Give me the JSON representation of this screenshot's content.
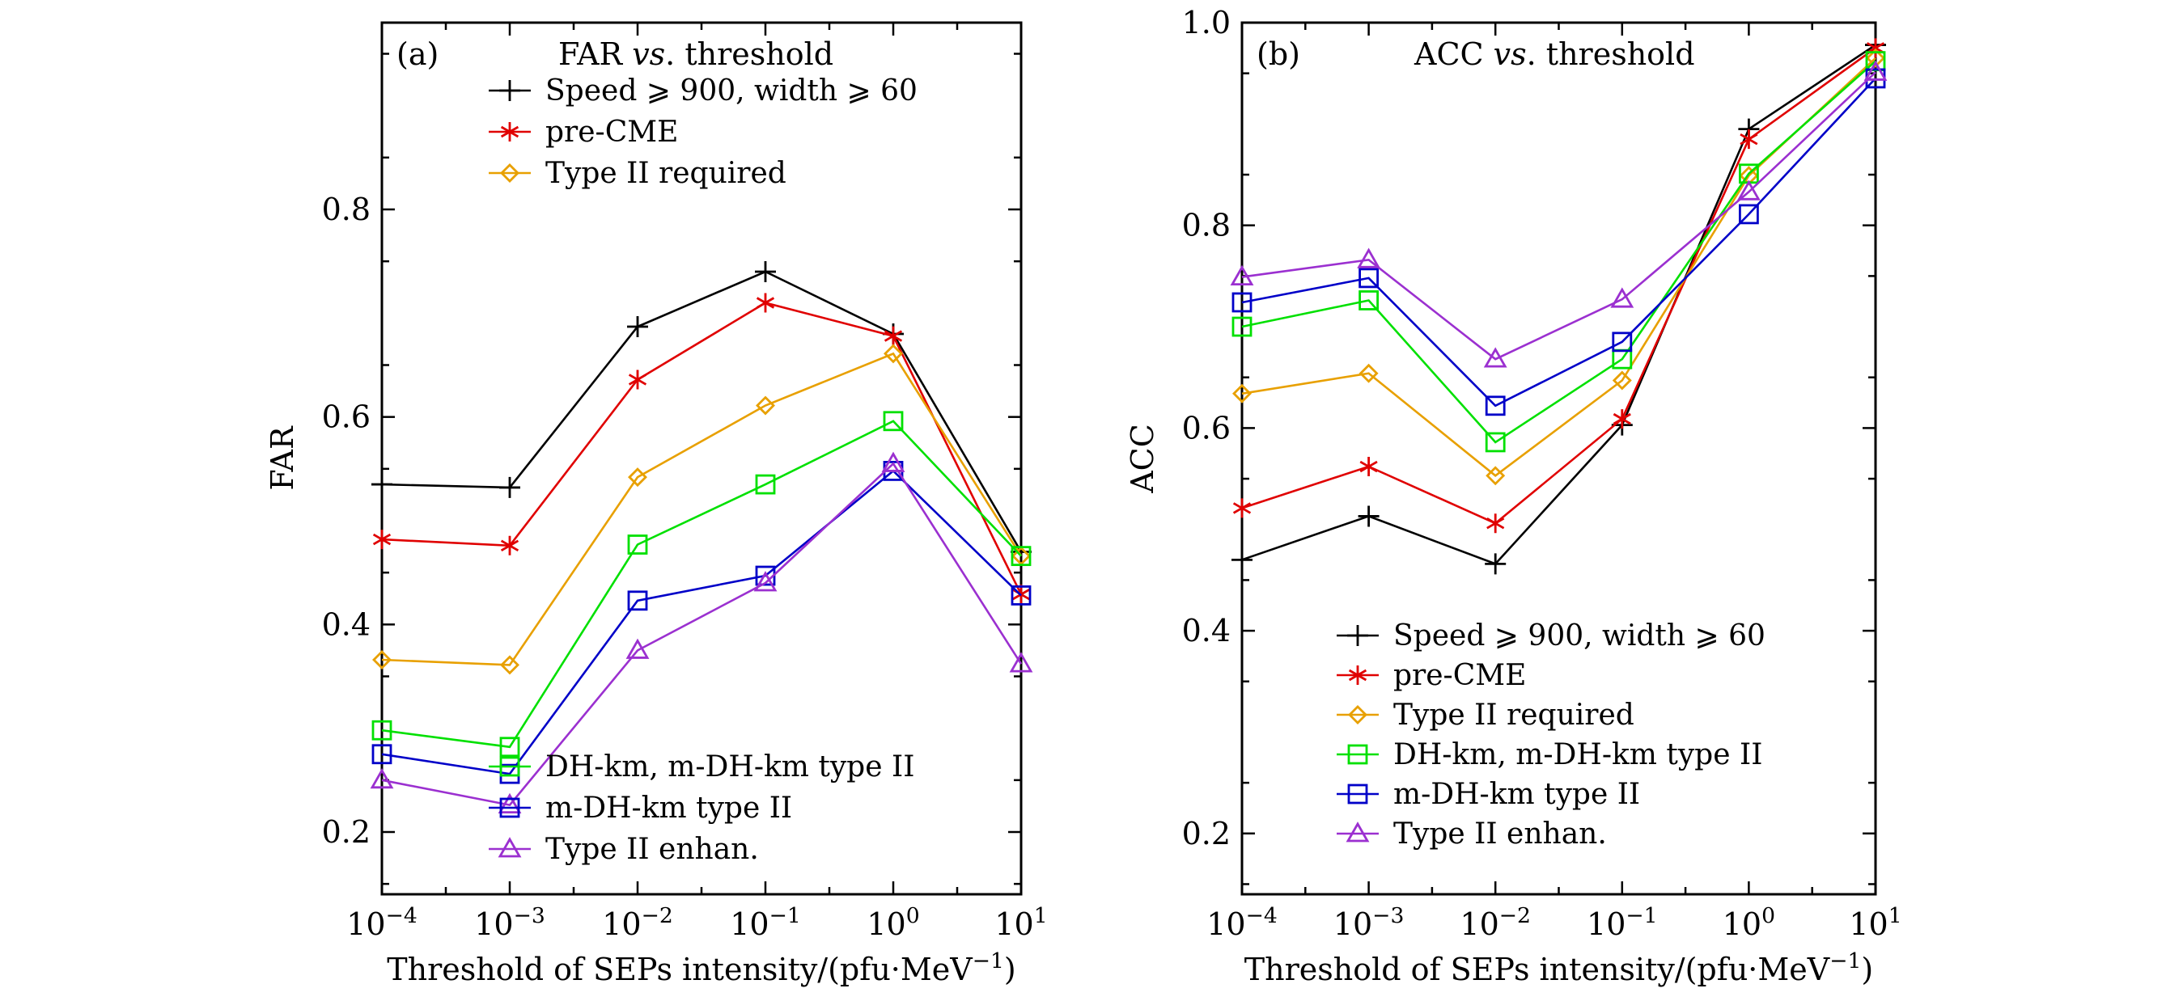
{
  "chart_data": [
    {
      "type": "line",
      "panel_label": "(a)",
      "title_parts": [
        "FAR ",
        "vs",
        ". threshold"
      ],
      "xlabel_parts": [
        "Threshold of SEPs intensity/(pfu·MeV",
        "−1",
        ")"
      ],
      "ylabel": "FAR",
      "x": [
        0.0001,
        0.001,
        0.01,
        0.1,
        1,
        10
      ],
      "x_scale": "log",
      "xlim": [
        0.0001,
        10
      ],
      "xticks": [
        {
          "base": "10",
          "exp": "−4"
        },
        {
          "base": "10",
          "exp": "−3"
        },
        {
          "base": "10",
          "exp": "−2"
        },
        {
          "base": "10",
          "exp": "−1"
        },
        {
          "base": "10",
          "exp": "0"
        },
        {
          "base": "10",
          "exp": "1"
        }
      ],
      "ylim": [
        0.14,
        0.98
      ],
      "yticks": [
        "0.2",
        "0.4",
        "0.6",
        "0.8"
      ],
      "grid": false,
      "legend_top": [
        "Speed ⩾ 900, width ⩾ 60",
        "pre-CME",
        "Type II required"
      ],
      "legend_bottom": [
        "DH-km, m-DH-km type II",
        "m-DH-km type II",
        "Type II enhan."
      ],
      "series": [
        {
          "name": "Speed ⩾ 900, width ⩾ 60",
          "color": "#000000",
          "marker": "plus",
          "values": [
            0.535,
            0.532,
            0.687,
            0.74,
            0.68,
            0.47
          ]
        },
        {
          "name": "pre-CME",
          "color": "#e00000",
          "marker": "asterisk",
          "values": [
            0.482,
            0.476,
            0.636,
            0.71,
            0.678,
            0.429
          ]
        },
        {
          "name": "Type II required",
          "color": "#e8a000",
          "marker": "diamond",
          "values": [
            0.366,
            0.361,
            0.542,
            0.611,
            0.661,
            0.466
          ]
        },
        {
          "name": "DH-km, m-DH-km type II",
          "color": "#00e000",
          "marker": "square",
          "values": [
            0.298,
            0.282,
            0.477,
            0.535,
            0.596,
            0.466
          ]
        },
        {
          "name": "m-DH-km type II",
          "color": "#0000c8",
          "marker": "square",
          "values": [
            0.275,
            0.256,
            0.423,
            0.447,
            0.548,
            0.428
          ]
        },
        {
          "name": "Type II enhan.",
          "color": "#9b30d0",
          "marker": "triangle",
          "values": [
            0.25,
            0.226,
            0.375,
            0.44,
            0.555,
            0.362
          ]
        }
      ]
    },
    {
      "type": "line",
      "panel_label": "(b)",
      "title_parts": [
        "ACC ",
        "vs",
        ". threshold"
      ],
      "xlabel_parts": [
        "Threshold of SEPs intensity/(pfu·MeV",
        "−1",
        ")"
      ],
      "ylabel": "ACC",
      "x": [
        0.0001,
        0.001,
        0.01,
        0.1,
        1,
        10
      ],
      "x_scale": "log",
      "xlim": [
        0.0001,
        10
      ],
      "xticks": [
        {
          "base": "10",
          "exp": "−4"
        },
        {
          "base": "10",
          "exp": "−3"
        },
        {
          "base": "10",
          "exp": "−2"
        },
        {
          "base": "10",
          "exp": "−1"
        },
        {
          "base": "10",
          "exp": "0"
        },
        {
          "base": "10",
          "exp": "1"
        }
      ],
      "ylim": [
        0.14,
        1.0
      ],
      "yticks": [
        "0.2",
        "0.4",
        "0.6",
        "0.8",
        "1.0"
      ],
      "grid": false,
      "legend_top": [],
      "legend_bottom": [
        "Speed ⩾ 900, width ⩾ 60",
        "pre-CME",
        "Type II required",
        "DH-km, m-DH-km type II",
        "m-DH-km type II",
        "Type II enhan."
      ],
      "series": [
        {
          "name": "Speed ⩾ 900, width ⩾ 60",
          "color": "#000000",
          "marker": "plus",
          "values": [
            0.47,
            0.513,
            0.466,
            0.603,
            0.895,
            0.978
          ]
        },
        {
          "name": "pre-CME",
          "color": "#e00000",
          "marker": "asterisk",
          "values": [
            0.521,
            0.562,
            0.506,
            0.609,
            0.885,
            0.975
          ]
        },
        {
          "name": "Type II required",
          "color": "#e8a000",
          "marker": "diamond",
          "values": [
            0.634,
            0.654,
            0.553,
            0.647,
            0.849,
            0.965
          ]
        },
        {
          "name": "DH-km, m-DH-km type II",
          "color": "#00e000",
          "marker": "square",
          "values": [
            0.7,
            0.726,
            0.586,
            0.668,
            0.851,
            0.962
          ]
        },
        {
          "name": "m-DH-km type II",
          "color": "#0000c8",
          "marker": "square",
          "values": [
            0.724,
            0.748,
            0.622,
            0.685,
            0.811,
            0.945
          ]
        },
        {
          "name": "Type II enhan.",
          "color": "#9b30d0",
          "marker": "triangle",
          "values": [
            0.749,
            0.766,
            0.668,
            0.727,
            0.833,
            0.951
          ]
        }
      ]
    }
  ]
}
